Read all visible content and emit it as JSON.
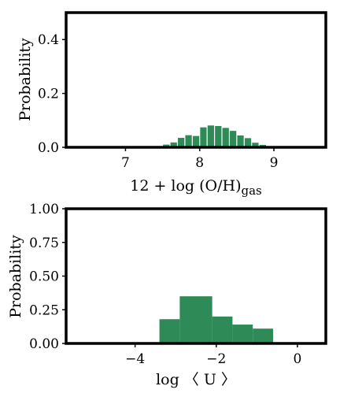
{
  "chart_data": [
    {
      "type": "bar",
      "title": "",
      "xlabel_main": "12 + log (O/H)",
      "xlabel_sub": "gas",
      "ylabel": "Probability",
      "xlim": [
        6.2,
        9.7
      ],
      "ylim": [
        0.0,
        0.5
      ],
      "xticks": [
        7,
        8,
        9
      ],
      "xtick_labels": [
        "7",
        "8",
        "9"
      ],
      "yticks": [
        0.0,
        0.2,
        0.4
      ],
      "ytick_labels": [
        "0.0",
        "0.2",
        "0.4"
      ],
      "bar_color": "#2e8b57",
      "bin_width": 0.1,
      "bin_centers": [
        7.45,
        7.55,
        7.65,
        7.75,
        7.85,
        7.95,
        8.05,
        8.15,
        8.25,
        8.35,
        8.45,
        8.55,
        8.65,
        8.75,
        8.85,
        8.95
      ],
      "values": [
        0.004,
        0.01,
        0.018,
        0.035,
        0.045,
        0.042,
        0.074,
        0.081,
        0.079,
        0.072,
        0.061,
        0.044,
        0.034,
        0.017,
        0.009,
        0.003
      ]
    },
    {
      "type": "bar",
      "title": "",
      "xlabel": "log 〈 U 〉",
      "ylabel": "Probability",
      "xlim": [
        -5.7,
        0.7
      ],
      "ylim": [
        0.0,
        1.0
      ],
      "xticks": [
        -4,
        -2,
        0
      ],
      "xtick_labels": [
        "−4",
        "−2",
        "0"
      ],
      "yticks": [
        0.0,
        0.25,
        0.5,
        0.75,
        1.0
      ],
      "ytick_labels": [
        "0.00",
        "0.25",
        "0.50",
        "0.75",
        "1.00"
      ],
      "bar_color": "#2e8b57",
      "bin_edges": [
        -3.4,
        -2.9,
        -2.1,
        -1.6,
        -1.1,
        -0.6
      ],
      "values": [
        0.18,
        0.35,
        0.2,
        0.14,
        0.11
      ]
    }
  ]
}
